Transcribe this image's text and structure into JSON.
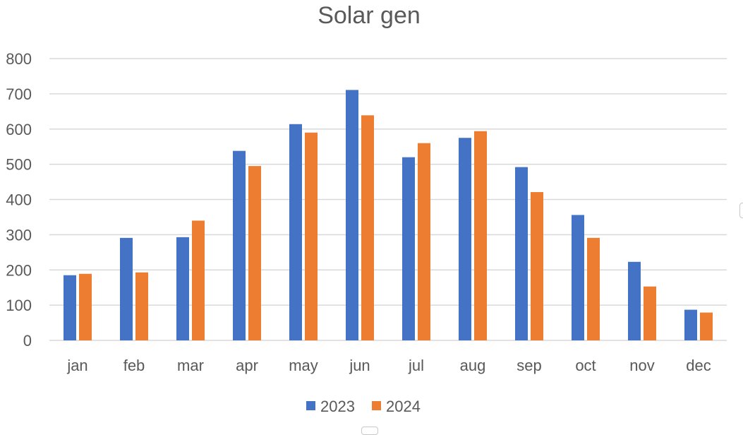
{
  "chart_data": {
    "type": "bar",
    "title": "Solar gen",
    "xlabel": "",
    "ylabel": "",
    "ylim": [
      0,
      800
    ],
    "yticks": [
      0,
      100,
      200,
      300,
      400,
      500,
      600,
      700,
      800
    ],
    "grid": true,
    "legend_position": "bottom",
    "categories": [
      "jan",
      "feb",
      "mar",
      "apr",
      "may",
      "jun",
      "jul",
      "aug",
      "sep",
      "oct",
      "nov",
      "dec"
    ],
    "series": [
      {
        "name": "2023",
        "color": "#4472c4",
        "values": [
          185,
          291,
          293,
          538,
          614,
          711,
          520,
          575,
          492,
          356,
          223,
          87
        ]
      },
      {
        "name": "2024",
        "color": "#ed7d31",
        "values": [
          189,
          193,
          340,
          495,
          590,
          639,
          560,
          594,
          421,
          291,
          153,
          79
        ]
      }
    ]
  }
}
